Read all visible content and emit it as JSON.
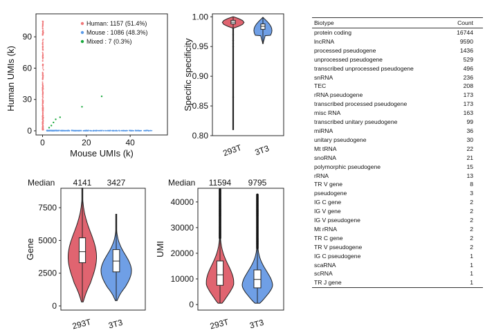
{
  "colors": {
    "human": "#f0787a",
    "mouse": "#5b9be8",
    "mixed": "#18a83c",
    "violin_red": "#e06470",
    "violin_blue": "#6f9fe6"
  },
  "chart_data": [
    {
      "type": "scatter",
      "xlabel": "Mouse UMIs (k)",
      "ylabel": "Human UMIs (k)",
      "xlim": [
        -3,
        57
      ],
      "ylim": [
        -4,
        112
      ],
      "xticks": [
        "0",
        "20",
        "40"
      ],
      "yticks": [
        "0",
        "30",
        "60",
        "90"
      ],
      "legend": [
        {
          "name": "Human",
          "label": "Human: 1157 (51.4%)",
          "color": "#f0787a"
        },
        {
          "name": "Mouse",
          "label": "Mouse : 1086 (48.3%)",
          "color": "#5b9be8"
        },
        {
          "name": "Mixed",
          "label": "Mixed : 7 (0.3%)",
          "color": "#18a83c"
        }
      ],
      "mixed_points": [
        [
          3,
          3
        ],
        [
          4,
          5
        ],
        [
          5,
          8
        ],
        [
          6,
          11
        ],
        [
          18,
          23
        ],
        [
          27,
          33
        ],
        [
          8,
          13
        ]
      ]
    },
    {
      "type": "violin",
      "ylabel": "Specific specificity",
      "categories": [
        "293T",
        "3T3"
      ],
      "ylim": [
        0.8,
        1.0
      ],
      "yticks": [
        "0.80",
        "0.85",
        "0.90",
        "0.95",
        "1.00"
      ],
      "box": [
        {
          "min": 0.81,
          "q1": 0.988,
          "median": 0.991,
          "q3": 0.994,
          "max": 1.0
        },
        {
          "min": 0.955,
          "q1": 0.979,
          "median": 0.984,
          "q3": 0.988,
          "max": 0.999
        }
      ]
    },
    {
      "type": "violin",
      "ylabel": "Gene",
      "header_label": "Median",
      "medians": [
        "4141",
        "3427"
      ],
      "categories": [
        "293T",
        "3T3"
      ],
      "ylim": [
        0,
        9000
      ],
      "yticks": [
        "0",
        "2500",
        "5000",
        "7500"
      ],
      "box": [
        {
          "min": 300,
          "q1": 3300,
          "median": 4141,
          "q3": 5200,
          "max": 9000
        },
        {
          "min": 400,
          "q1": 2600,
          "median": 3427,
          "q3": 4300,
          "max": 7000
        }
      ]
    },
    {
      "type": "violin",
      "ylabel": "UMI",
      "header_label": "Median",
      "medians": [
        "11594",
        "9795"
      ],
      "categories": [
        "293T",
        "3T3"
      ],
      "ylim": [
        0,
        46000
      ],
      "yticks": [
        "0",
        "10000",
        "20000",
        "30000",
        "40000"
      ],
      "box": [
        {
          "min": 500,
          "q1": 7500,
          "median": 11594,
          "q3": 17000,
          "max": 45000
        },
        {
          "min": 500,
          "q1": 6500,
          "median": 9795,
          "q3": 13500,
          "max": 43000
        }
      ]
    },
    {
      "type": "table",
      "columns": [
        "Biotype",
        "Count"
      ],
      "rows": [
        [
          "protein coding",
          "16744"
        ],
        [
          "lncRNA",
          "9590"
        ],
        [
          "processed pseudogene",
          "1436"
        ],
        [
          "unprocessed pseudogene",
          "529"
        ],
        [
          "transcribed unprocessed pseudogene",
          "496"
        ],
        [
          "snRNA",
          "236"
        ],
        [
          "TEC",
          "208"
        ],
        [
          "rRNA pseudogene",
          "173"
        ],
        [
          "transcribed processed pseudogene",
          "173"
        ],
        [
          "misc RNA",
          "163"
        ],
        [
          "transcribed unitary pseudogene",
          "99"
        ],
        [
          "miRNA",
          "36"
        ],
        [
          "unitary pseudogene",
          "30"
        ],
        [
          "Mt tRNA",
          "22"
        ],
        [
          "snoRNA",
          "21"
        ],
        [
          "polymorphic pseudogene",
          "15"
        ],
        [
          "rRNA",
          "13"
        ],
        [
          "TR V gene",
          "8"
        ],
        [
          "pseudogene",
          "3"
        ],
        [
          "IG C gene",
          "2"
        ],
        [
          "IG V gene",
          "2"
        ],
        [
          "IG V pseudogene",
          "2"
        ],
        [
          "Mt rRNA",
          "2"
        ],
        [
          "TR C gene",
          "2"
        ],
        [
          "TR V pseudogene",
          "2"
        ],
        [
          "IG C pseudogene",
          "1"
        ],
        [
          "scaRNA",
          "1"
        ],
        [
          "scRNA",
          "1"
        ],
        [
          "TR J gene",
          "1"
        ]
      ]
    }
  ]
}
